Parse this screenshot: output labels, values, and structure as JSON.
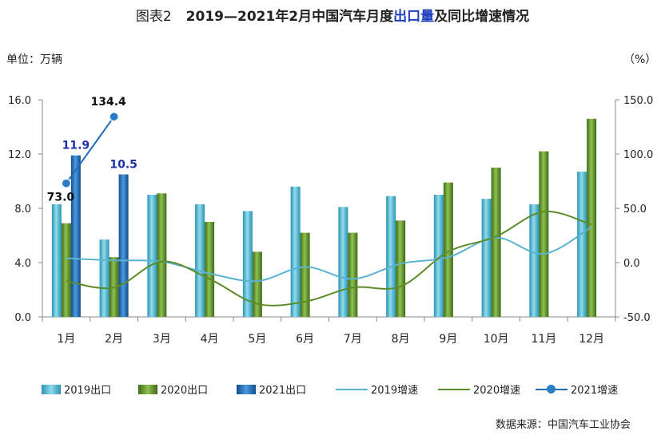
{
  "title": {
    "figure_label": "图表2",
    "prefix": "2019—2021年2月中国汽车月度",
    "highlight": "出口量",
    "suffix": "及同比增速情况"
  },
  "unit_left": "单位：万辆",
  "unit_right": "（%）",
  "source": "数据来源：中国汽车工业协会",
  "colors": {
    "bar_2019": "#4bb8d0",
    "bar_2020": "#5d8c2a",
    "bar_2021": "#1f6bb8",
    "line_2019": "#5ab4d0",
    "line_2020": "#5d8c2a",
    "line_2021": "#1f6bb8",
    "label_2021": "#1f2fa8"
  },
  "chart_data": {
    "type": "bar",
    "categories": [
      "1月",
      "2月",
      "3月",
      "4月",
      "5月",
      "6月",
      "7月",
      "8月",
      "9月",
      "10月",
      "11月",
      "12月"
    ],
    "y_left": {
      "range": [
        0,
        16
      ],
      "ticks": [
        "0.0",
        "4.0",
        "8.0",
        "12.0",
        "16.0"
      ]
    },
    "y_right": {
      "range": [
        -50,
        150
      ],
      "ticks": [
        "-50.0",
        "0.0",
        "50.0",
        "100.0",
        "150.0"
      ]
    },
    "bar_series": [
      {
        "name": "2019出口",
        "values": [
          8.3,
          5.7,
          9.0,
          8.3,
          7.8,
          9.6,
          8.1,
          8.9,
          9.0,
          8.7,
          8.3,
          10.7
        ]
      },
      {
        "name": "2020出口",
        "values": [
          6.9,
          4.4,
          9.1,
          7.0,
          4.8,
          6.2,
          6.2,
          7.1,
          9.9,
          11.0,
          12.2,
          14.6
        ]
      },
      {
        "name": "2021出口",
        "values": [
          11.9,
          10.5,
          null,
          null,
          null,
          null,
          null,
          null,
          null,
          null,
          null,
          null
        ]
      }
    ],
    "line_series": [
      {
        "name": "2019增速",
        "values": [
          4,
          2,
          1,
          -10,
          -17,
          -4,
          -15,
          -1,
          5,
          23,
          8,
          33
        ]
      },
      {
        "name": "2020增速",
        "values": [
          -17,
          -23,
          1,
          -15,
          -38,
          -36,
          -23,
          -22,
          10,
          24,
          47,
          35
        ]
      },
      {
        "name": "2021增速",
        "values": [
          73.0,
          134.4,
          null,
          null,
          null,
          null,
          null,
          null,
          null,
          null,
          null,
          null
        ]
      }
    ],
    "data_labels": [
      {
        "text": "11.9",
        "series": "2021出口",
        "index": 0
      },
      {
        "text": "10.5",
        "series": "2021出口",
        "index": 1
      },
      {
        "text": "73.0",
        "series": "2021增速",
        "index": 0
      },
      {
        "text": "134.4",
        "series": "2021增速",
        "index": 1
      }
    ],
    "legend_position": "bottom"
  }
}
